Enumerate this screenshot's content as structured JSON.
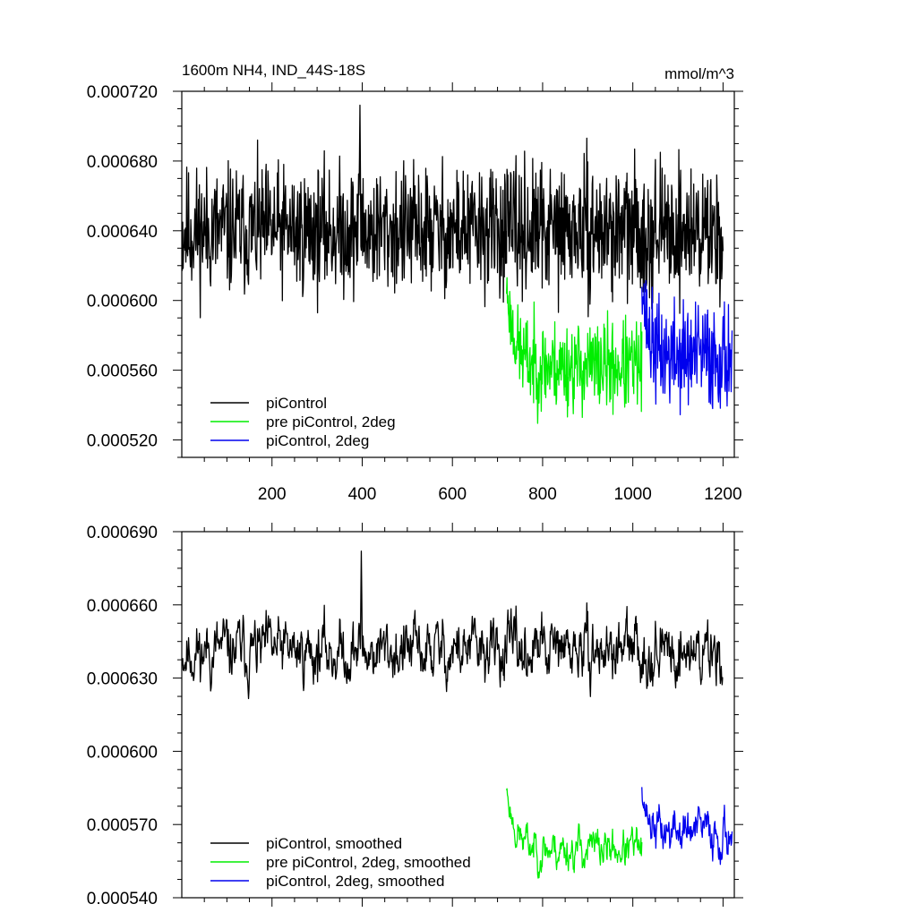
{
  "chart_data": [
    {
      "type": "line",
      "title": "1600m NH4, IND_44S-18S",
      "units": "mmol/m^3",
      "xlim": [
        0,
        1225
      ],
      "ylim": [
        0.00051,
        0.00072
      ],
      "x_ticks": [
        200,
        400,
        600,
        800,
        1000,
        1200
      ],
      "y_ticks": [
        0.00052,
        0.00056,
        0.0006,
        0.00064,
        0.00068,
        0.00072
      ],
      "x_tick_labels": [
        "200",
        "400",
        "600",
        "800",
        "1000",
        "1200"
      ],
      "y_tick_labels": [
        "0.000520",
        "0.000560",
        "0.000600",
        "0.000640",
        "0.000680",
        "0.000720"
      ],
      "grid": false,
      "legend_position": "bottom-left",
      "series": [
        {
          "name": "piControl",
          "color": "#000000",
          "x_range": [
            1,
            1200
          ],
          "mean": 0.00064,
          "amplitude": 1.4e-05,
          "spike": {
            "x": 395,
            "y": 0.000712
          },
          "seed": 11,
          "smoothed": false
        },
        {
          "name": "pre piControl, 2deg",
          "color": "#00ee00",
          "x_range": [
            720,
            1020
          ],
          "mean": 0.000562,
          "amplitude": 1e-05,
          "start": 0.000608,
          "seed": 23,
          "smoothed": false
        },
        {
          "name": "piControl, 2deg",
          "color": "#0000ee",
          "x_range": [
            1020,
            1220
          ],
          "mean": 0.000568,
          "amplitude": 1.2e-05,
          "start": 0.000615,
          "seed": 37,
          "smoothed": false
        }
      ]
    },
    {
      "type": "line",
      "title": "",
      "units": "",
      "xlim": [
        0,
        1225
      ],
      "ylim": [
        0.00054,
        0.00069
      ],
      "x_ticks": [
        200,
        400,
        600,
        800,
        1000,
        1200
      ],
      "y_ticks": [
        0.00054,
        0.00057,
        0.0006,
        0.00063,
        0.00066,
        0.00069
      ],
      "x_tick_labels": [],
      "y_tick_labels": [
        "0.000540",
        "0.000570",
        "0.000600",
        "0.000630",
        "0.000660",
        "0.000690"
      ],
      "grid": false,
      "legend_position": "bottom-left",
      "series": [
        {
          "name": "piControl, smoothed",
          "color": "#000000",
          "x_range": [
            1,
            1200
          ],
          "mean": 0.000641,
          "amplitude": 8.5e-06,
          "spike": {
            "x": 398,
            "y": 0.000682
          },
          "seed": 11,
          "smoothed": true
        },
        {
          "name": "pre piControl, 2deg, smoothed",
          "color": "#00ee00",
          "x_range": [
            720,
            1020
          ],
          "mean": 0.00056,
          "amplitude": 5.5e-06,
          "start": 0.000585,
          "seed": 23,
          "smoothed": true
        },
        {
          "name": "piControl, 2deg, smoothed",
          "color": "#0000ee",
          "x_range": [
            1020,
            1220
          ],
          "mean": 0.000567,
          "amplitude": 6.5e-06,
          "start": 0.000587,
          "seed": 37,
          "smoothed": true
        }
      ]
    }
  ]
}
